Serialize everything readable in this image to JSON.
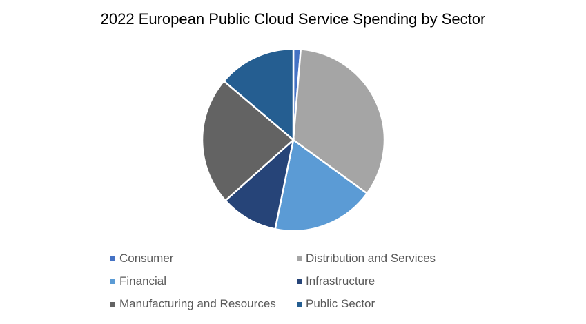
{
  "chart_data": {
    "type": "pie",
    "title": "2022 European Public Cloud Service Spending by Sector",
    "categories": [
      "Consumer",
      "Distribution and Services",
      "Financial",
      "Infrastructure",
      "Manufacturing and Resources",
      "Public Sector"
    ],
    "values": [
      1.3,
      33.7,
      18.2,
      10.2,
      22.8,
      13.8
    ],
    "colors": [
      "#4472C4",
      "#A5A5A5",
      "#5B9BD5",
      "#264478",
      "#636363",
      "#255E91"
    ],
    "legend_position": "bottom",
    "start_angle_deg": 0,
    "direction": "clockwise"
  }
}
